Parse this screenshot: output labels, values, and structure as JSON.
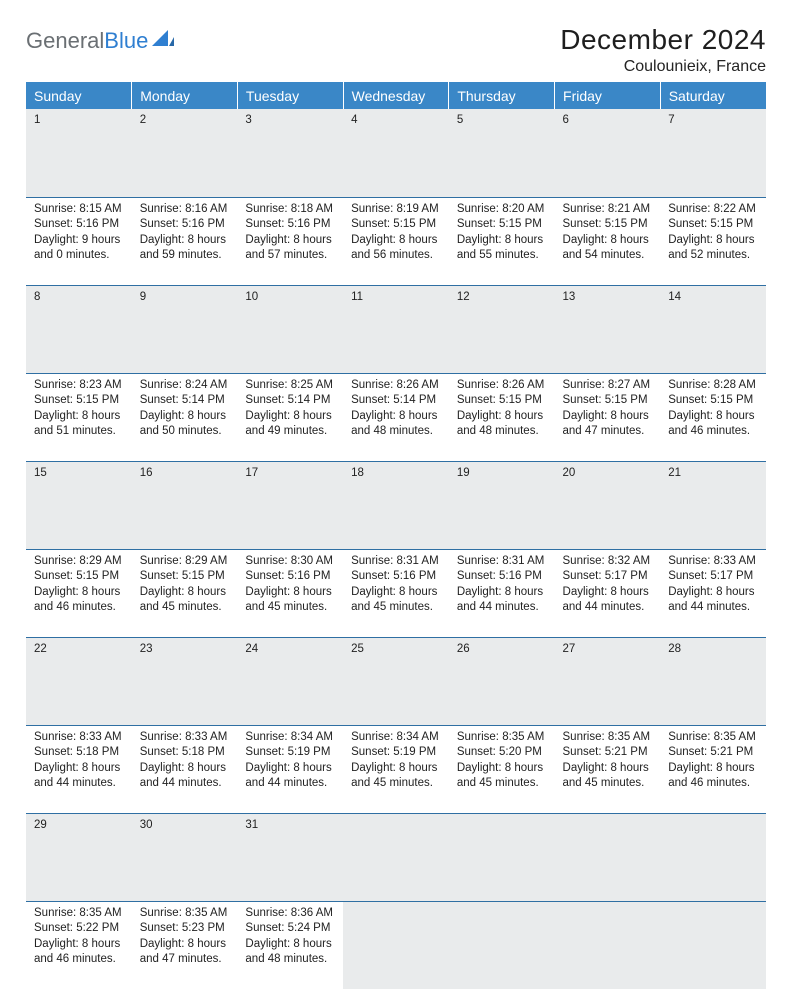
{
  "brand": {
    "part1": "General",
    "part2": "Blue"
  },
  "title": "December 2024",
  "location": "Coulounieix, France",
  "colors": {
    "header_bg": "#3a87c7",
    "row_divider": "#2f6fa3",
    "daynum_bg": "#e9ebec",
    "logo_gray": "#6a6f73",
    "logo_blue": "#2f7fd1",
    "page_bg": "#ffffff",
    "text": "#212121"
  },
  "weekdays": [
    "Sunday",
    "Monday",
    "Tuesday",
    "Wednesday",
    "Thursday",
    "Friday",
    "Saturday"
  ],
  "weeks": [
    {
      "nums": [
        "1",
        "2",
        "3",
        "4",
        "5",
        "6",
        "7"
      ],
      "cells": [
        {
          "sunrise": "Sunrise: 8:15 AM",
          "sunset": "Sunset: 5:16 PM",
          "day1": "Daylight: 9 hours",
          "day2": "and 0 minutes."
        },
        {
          "sunrise": "Sunrise: 8:16 AM",
          "sunset": "Sunset: 5:16 PM",
          "day1": "Daylight: 8 hours",
          "day2": "and 59 minutes."
        },
        {
          "sunrise": "Sunrise: 8:18 AM",
          "sunset": "Sunset: 5:16 PM",
          "day1": "Daylight: 8 hours",
          "day2": "and 57 minutes."
        },
        {
          "sunrise": "Sunrise: 8:19 AM",
          "sunset": "Sunset: 5:15 PM",
          "day1": "Daylight: 8 hours",
          "day2": "and 56 minutes."
        },
        {
          "sunrise": "Sunrise: 8:20 AM",
          "sunset": "Sunset: 5:15 PM",
          "day1": "Daylight: 8 hours",
          "day2": "and 55 minutes."
        },
        {
          "sunrise": "Sunrise: 8:21 AM",
          "sunset": "Sunset: 5:15 PM",
          "day1": "Daylight: 8 hours",
          "day2": "and 54 minutes."
        },
        {
          "sunrise": "Sunrise: 8:22 AM",
          "sunset": "Sunset: 5:15 PM",
          "day1": "Daylight: 8 hours",
          "day2": "and 52 minutes."
        }
      ]
    },
    {
      "nums": [
        "8",
        "9",
        "10",
        "11",
        "12",
        "13",
        "14"
      ],
      "cells": [
        {
          "sunrise": "Sunrise: 8:23 AM",
          "sunset": "Sunset: 5:15 PM",
          "day1": "Daylight: 8 hours",
          "day2": "and 51 minutes."
        },
        {
          "sunrise": "Sunrise: 8:24 AM",
          "sunset": "Sunset: 5:14 PM",
          "day1": "Daylight: 8 hours",
          "day2": "and 50 minutes."
        },
        {
          "sunrise": "Sunrise: 8:25 AM",
          "sunset": "Sunset: 5:14 PM",
          "day1": "Daylight: 8 hours",
          "day2": "and 49 minutes."
        },
        {
          "sunrise": "Sunrise: 8:26 AM",
          "sunset": "Sunset: 5:14 PM",
          "day1": "Daylight: 8 hours",
          "day2": "and 48 minutes."
        },
        {
          "sunrise": "Sunrise: 8:26 AM",
          "sunset": "Sunset: 5:15 PM",
          "day1": "Daylight: 8 hours",
          "day2": "and 48 minutes."
        },
        {
          "sunrise": "Sunrise: 8:27 AM",
          "sunset": "Sunset: 5:15 PM",
          "day1": "Daylight: 8 hours",
          "day2": "and 47 minutes."
        },
        {
          "sunrise": "Sunrise: 8:28 AM",
          "sunset": "Sunset: 5:15 PM",
          "day1": "Daylight: 8 hours",
          "day2": "and 46 minutes."
        }
      ]
    },
    {
      "nums": [
        "15",
        "16",
        "17",
        "18",
        "19",
        "20",
        "21"
      ],
      "cells": [
        {
          "sunrise": "Sunrise: 8:29 AM",
          "sunset": "Sunset: 5:15 PM",
          "day1": "Daylight: 8 hours",
          "day2": "and 46 minutes."
        },
        {
          "sunrise": "Sunrise: 8:29 AM",
          "sunset": "Sunset: 5:15 PM",
          "day1": "Daylight: 8 hours",
          "day2": "and 45 minutes."
        },
        {
          "sunrise": "Sunrise: 8:30 AM",
          "sunset": "Sunset: 5:16 PM",
          "day1": "Daylight: 8 hours",
          "day2": "and 45 minutes."
        },
        {
          "sunrise": "Sunrise: 8:31 AM",
          "sunset": "Sunset: 5:16 PM",
          "day1": "Daylight: 8 hours",
          "day2": "and 45 minutes."
        },
        {
          "sunrise": "Sunrise: 8:31 AM",
          "sunset": "Sunset: 5:16 PM",
          "day1": "Daylight: 8 hours",
          "day2": "and 44 minutes."
        },
        {
          "sunrise": "Sunrise: 8:32 AM",
          "sunset": "Sunset: 5:17 PM",
          "day1": "Daylight: 8 hours",
          "day2": "and 44 minutes."
        },
        {
          "sunrise": "Sunrise: 8:33 AM",
          "sunset": "Sunset: 5:17 PM",
          "day1": "Daylight: 8 hours",
          "day2": "and 44 minutes."
        }
      ]
    },
    {
      "nums": [
        "22",
        "23",
        "24",
        "25",
        "26",
        "27",
        "28"
      ],
      "cells": [
        {
          "sunrise": "Sunrise: 8:33 AM",
          "sunset": "Sunset: 5:18 PM",
          "day1": "Daylight: 8 hours",
          "day2": "and 44 minutes."
        },
        {
          "sunrise": "Sunrise: 8:33 AM",
          "sunset": "Sunset: 5:18 PM",
          "day1": "Daylight: 8 hours",
          "day2": "and 44 minutes."
        },
        {
          "sunrise": "Sunrise: 8:34 AM",
          "sunset": "Sunset: 5:19 PM",
          "day1": "Daylight: 8 hours",
          "day2": "and 44 minutes."
        },
        {
          "sunrise": "Sunrise: 8:34 AM",
          "sunset": "Sunset: 5:19 PM",
          "day1": "Daylight: 8 hours",
          "day2": "and 45 minutes."
        },
        {
          "sunrise": "Sunrise: 8:35 AM",
          "sunset": "Sunset: 5:20 PM",
          "day1": "Daylight: 8 hours",
          "day2": "and 45 minutes."
        },
        {
          "sunrise": "Sunrise: 8:35 AM",
          "sunset": "Sunset: 5:21 PM",
          "day1": "Daylight: 8 hours",
          "day2": "and 45 minutes."
        },
        {
          "sunrise": "Sunrise: 8:35 AM",
          "sunset": "Sunset: 5:21 PM",
          "day1": "Daylight: 8 hours",
          "day2": "and 46 minutes."
        }
      ]
    },
    {
      "nums": [
        "29",
        "30",
        "31",
        "",
        "",
        "",
        ""
      ],
      "cells": [
        {
          "sunrise": "Sunrise: 8:35 AM",
          "sunset": "Sunset: 5:22 PM",
          "day1": "Daylight: 8 hours",
          "day2": "and 46 minutes."
        },
        {
          "sunrise": "Sunrise: 8:35 AM",
          "sunset": "Sunset: 5:23 PM",
          "day1": "Daylight: 8 hours",
          "day2": "and 47 minutes."
        },
        {
          "sunrise": "Sunrise: 8:36 AM",
          "sunset": "Sunset: 5:24 PM",
          "day1": "Daylight: 8 hours",
          "day2": "and 48 minutes."
        },
        null,
        null,
        null,
        null
      ]
    }
  ]
}
